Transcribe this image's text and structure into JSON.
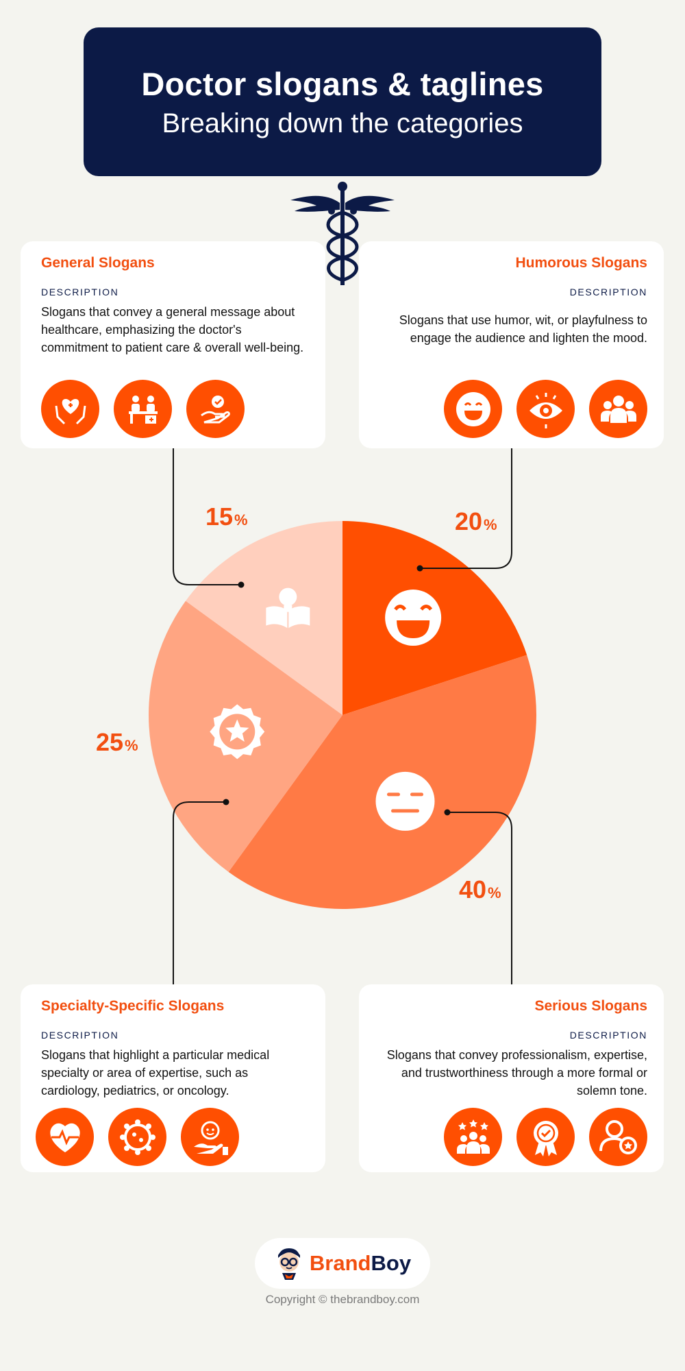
{
  "header": {
    "title": "Doctor slogans & taglines",
    "subtitle": "Breaking down the categories"
  },
  "cards": [
    {
      "title": "General Slogans",
      "desc_label": "DESCRIPTION",
      "description": "Slogans that convey a general message about healthcare, emphasizing the doctor's commitment to patient care & overall well-being.",
      "icons": [
        "hands-heart-icon",
        "doctor-desk-icon",
        "hand-check-icon"
      ]
    },
    {
      "title": "Humorous Slogans",
      "desc_label": "DESCRIPTION",
      "description": "Slogans that use humor, wit, or playfulness to engage the audience and lighten the mood.",
      "icons": [
        "laughing-face-icon",
        "eye-icon",
        "group-icon"
      ]
    },
    {
      "title": "Specialty-Specific Slogans",
      "desc_label": "DESCRIPTION",
      "description": "Slogans that highlight a particular medical specialty or area of expertise, such as cardiology, pediatrics, or oncology.",
      "icons": [
        "heartbeat-icon",
        "cell-icon",
        "hand-baby-icon"
      ]
    },
    {
      "title": "Serious Slogans",
      "desc_label": "DESCRIPTION",
      "description": "Slogans that convey professionalism, expertise, and trustworthiness through a more formal or solemn tone.",
      "icons": [
        "team-stars-icon",
        "award-ribbon-icon",
        "person-badge-icon"
      ]
    }
  ],
  "chart_data": {
    "type": "pie",
    "slices": [
      {
        "category": "Humorous Slogans",
        "value": 20,
        "label": "20",
        "unit": "%",
        "color": "#ff4f01",
        "icon": "laughing-face-icon"
      },
      {
        "category": "Serious Slogans",
        "value": 40,
        "label": "40",
        "unit": "%",
        "color": "#ff7a45",
        "icon": "neutral-face-icon"
      },
      {
        "category": "Specialty-Specific Slogans",
        "value": 25,
        "label": "25",
        "unit": "%",
        "color": "#ffa582",
        "icon": "star-badge-icon"
      },
      {
        "category": "General Slogans",
        "value": 15,
        "label": "15",
        "unit": "%",
        "color": "#ffcfbd",
        "icon": "book-bulb-icon"
      }
    ]
  },
  "footer": {
    "logo_brand": "Brand",
    "logo_boy": "Boy",
    "copyright": "Copyright © thebrandboy.com"
  },
  "colors": {
    "accent": "#ff4f01",
    "navy": "#0c1a46",
    "background": "#f4f4ef"
  }
}
